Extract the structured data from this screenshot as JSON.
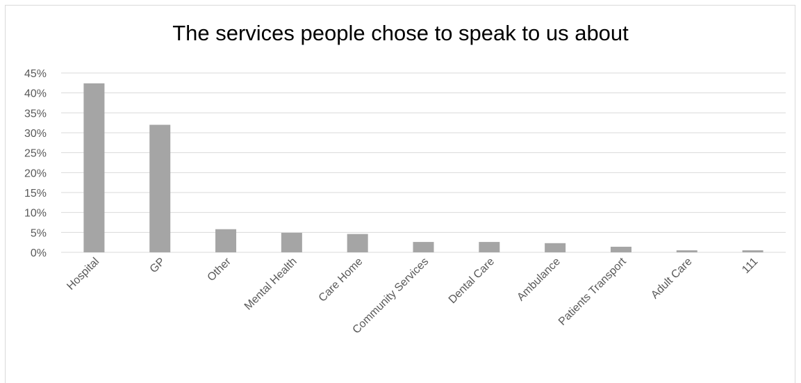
{
  "chart_data": {
    "type": "bar",
    "title": "The services people chose to speak to us about",
    "xlabel": "",
    "ylabel": "",
    "categories": [
      "Hospital",
      "GP",
      "Other",
      "Mental Health",
      "Care Home",
      "Community Services",
      "Dental Care",
      "Ambulance",
      "Patients Transport",
      "Adult Care",
      "111"
    ],
    "values": [
      42.4,
      32.0,
      5.8,
      4.9,
      4.6,
      2.6,
      2.6,
      2.3,
      1.4,
      0.5,
      0.5
    ],
    "ylim": [
      0,
      45
    ],
    "yticks": [
      "0%",
      "5%",
      "10%",
      "15%",
      "20%",
      "25%",
      "30%",
      "35%",
      "40%",
      "45%"
    ],
    "grid": true,
    "legend": "none",
    "bar_color": "#a5a5a5",
    "gridline_color": "#d9d9d9",
    "axis_text_color": "#595959"
  }
}
